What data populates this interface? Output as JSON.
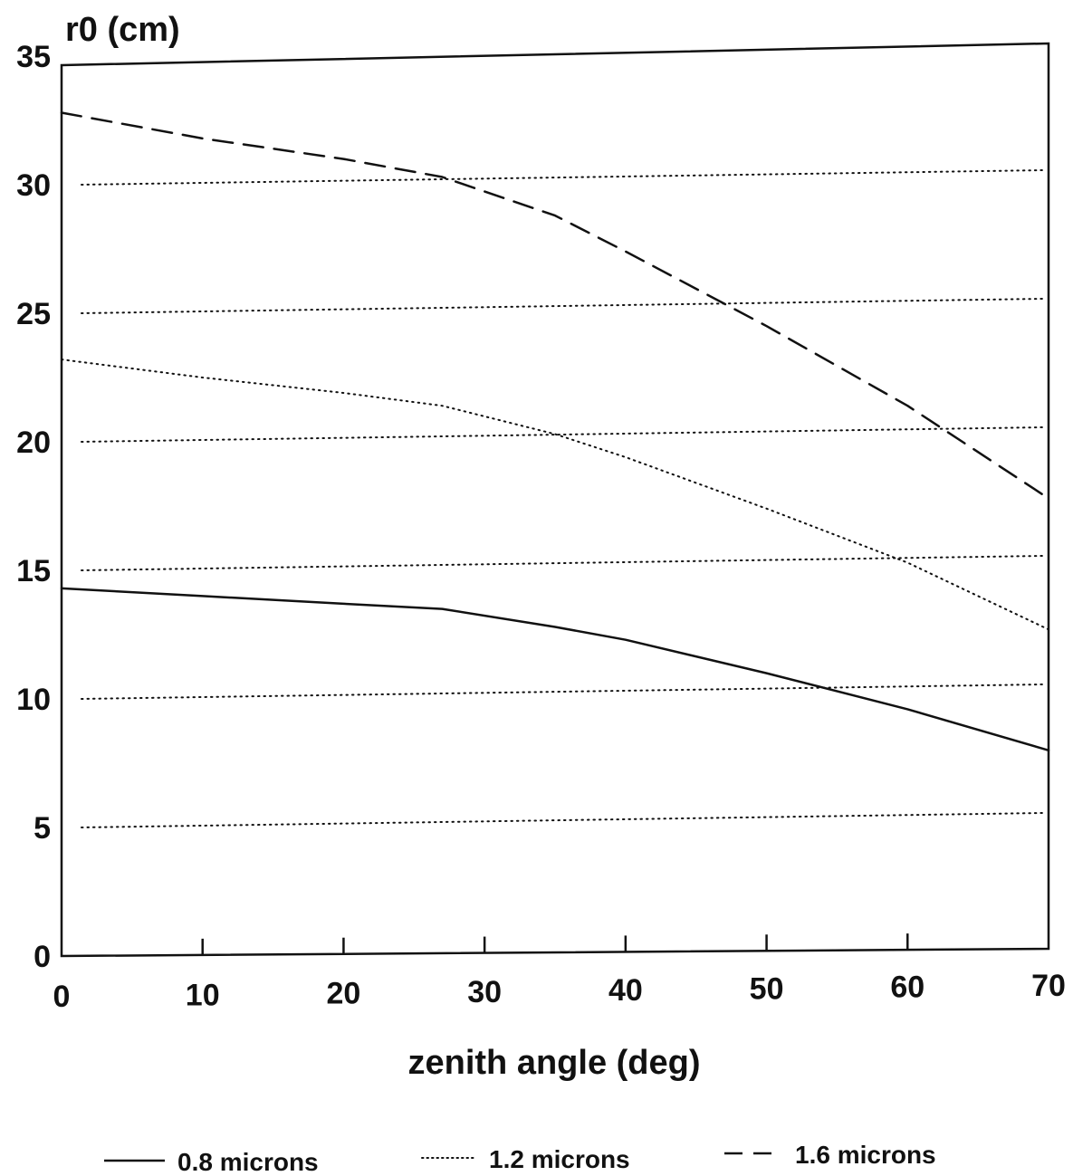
{
  "chart_data": {
    "type": "line",
    "title": "",
    "xlabel": "zenith angle (deg)",
    "ylabel": "r0 (cm)",
    "xlim": [
      0,
      70
    ],
    "ylim": [
      0,
      35
    ],
    "xticks": [
      0,
      10,
      20,
      30,
      40,
      50,
      60,
      70
    ],
    "yticks": [
      0,
      5,
      10,
      15,
      20,
      25,
      30,
      35
    ],
    "x_tick_labels": [
      "0",
      "10",
      "20",
      "30",
      "40",
      "50",
      "60",
      "70"
    ],
    "y_tick_labels": [
      "0",
      "5",
      "10",
      "15",
      "20",
      "25",
      "30",
      "35"
    ],
    "grid": "dotted horizontal lines at 5, 10, 15, 20, 25, 30",
    "legend_position": "bottom",
    "series": [
      {
        "name": "0.8 microns",
        "style": "solid",
        "x": [
          0,
          10,
          20,
          27,
          35,
          40,
          50,
          60,
          70
        ],
        "y": [
          14.3,
          14.0,
          13.7,
          13.5,
          12.8,
          12.3,
          11.0,
          9.6,
          8.0
        ]
      },
      {
        "name": "1.2 microns",
        "style": "dotted",
        "x": [
          0,
          10,
          20,
          27,
          35,
          40,
          50,
          60,
          70
        ],
        "y": [
          23.2,
          22.5,
          21.9,
          21.4,
          20.3,
          19.4,
          17.4,
          15.3,
          12.7
        ]
      },
      {
        "name": "1.6 microns",
        "style": "dashed",
        "x": [
          0,
          10,
          20,
          27,
          35,
          40,
          50,
          60,
          70
        ],
        "y": [
          32.8,
          31.8,
          31.0,
          30.3,
          28.8,
          27.4,
          24.5,
          21.4,
          17.8
        ]
      }
    ],
    "colors": {
      "line": "#111111",
      "grid": "#111111",
      "background": "#ffffff"
    }
  }
}
